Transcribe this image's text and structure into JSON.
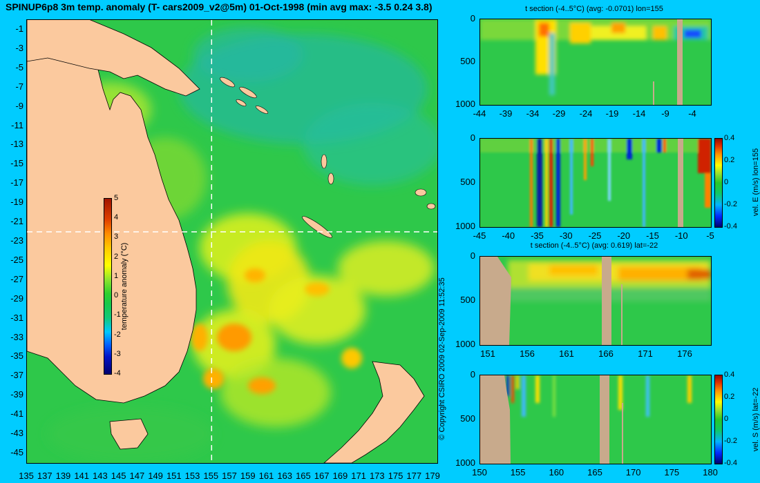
{
  "title": "SPINUP6p8 3m temp. anomaly (T- cars2009_v2@5m) 01-Oct-1998 (min avg max: -3.5 0.24 3.8)",
  "map": {
    "lat_ticks": [
      "-1",
      "-3",
      "-5",
      "-7",
      "-9",
      "-11",
      "-13",
      "-15",
      "-17",
      "-19",
      "-21",
      "-23",
      "-25",
      "-27",
      "-29",
      "-31",
      "-33",
      "-35",
      "-37",
      "-39",
      "-41",
      "-43",
      "-45"
    ],
    "lon_ticks": [
      "135",
      "137",
      "139",
      "141",
      "143",
      "145",
      "147",
      "149",
      "151",
      "153",
      "155",
      "157",
      "159",
      "161",
      "163",
      "165",
      "167",
      "169",
      "171",
      "173",
      "175",
      "177",
      "179"
    ],
    "section_lon": 155,
    "section_lat": -22,
    "colorbar": {
      "label": "temperature anomaly (°C)",
      "ticks": [
        "5",
        "4",
        "3",
        "2",
        "1",
        "0",
        "-1",
        "-2",
        "-3",
        "-4"
      ]
    }
  },
  "copyright": "© Copyright CSIRO 2009   02-Sep-2009 11:52:35",
  "panels": {
    "p1": {
      "title": "t section (-4..5°C) (avg: -0.0701) lon=155",
      "y_ticks": [
        "0",
        "500",
        "1000"
      ],
      "x_ticks": [
        "-44",
        "-39",
        "-34",
        "-29",
        "-24",
        "-19",
        "-14",
        "-9",
        "-4"
      ]
    },
    "p2": {
      "y_ticks": [
        "0",
        "500",
        "1000"
      ],
      "x_ticks": [
        "-45",
        "-40",
        "-35",
        "-30",
        "-25",
        "-20",
        "-15",
        "-10",
        "-5"
      ],
      "cb_label": "vel. E (m/s) lon=155",
      "cb_ticks": [
        "0.4",
        "0.2",
        "0",
        "-0.2",
        "-0.4"
      ]
    },
    "p3": {
      "title": "t section (-4..5°C) (avg: 0.619) lat=-22",
      "y_ticks": [
        "0",
        "500",
        "1000"
      ],
      "x_ticks": [
        "151",
        "156",
        "161",
        "166",
        "171",
        "176"
      ]
    },
    "p4": {
      "y_ticks": [
        "0",
        "500",
        "1000"
      ],
      "x_ticks": [
        "150",
        "155",
        "160",
        "165",
        "170",
        "175",
        "180"
      ],
      "cb_label": "vel. S (m/s) lat=-22",
      "cb_ticks": [
        "0.4",
        "0.2",
        "0",
        "-0.2",
        "-0.4"
      ]
    }
  },
  "colors": {
    "background": "#00ccff",
    "land": "#fbc99e",
    "ocean": "#2ec84a",
    "section_land": "#c8aa8c"
  }
}
